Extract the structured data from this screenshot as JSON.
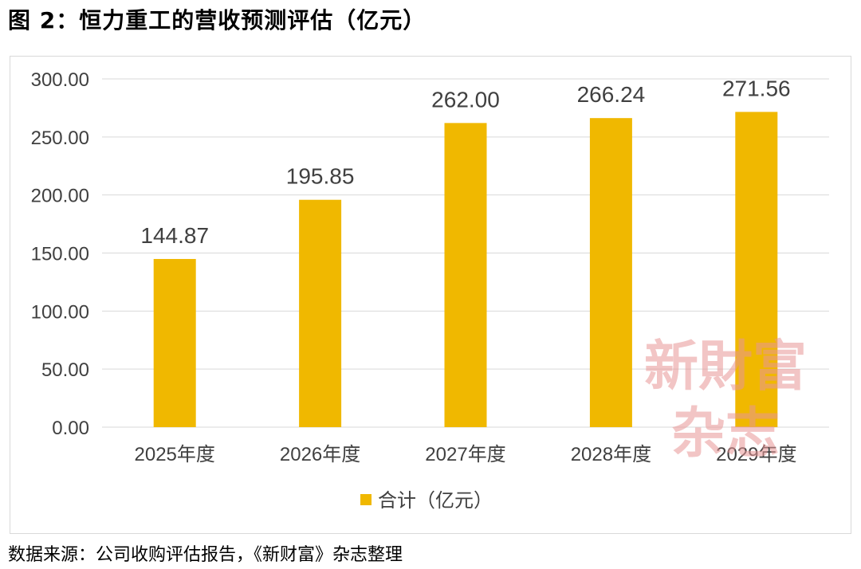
{
  "figure": {
    "title": "图 2：恒力重工的营收预测评估（亿元）",
    "source": "数据来源：公司收购评估报告，《新财富》杂志整理",
    "watermark_line1": "新財富",
    "watermark_line2": "杂志"
  },
  "chart_data": {
    "type": "bar",
    "title": "",
    "xlabel": "",
    "ylabel": "",
    "categories": [
      "2025年度",
      "2026年度",
      "2027年度",
      "2028年度",
      "2029年度"
    ],
    "series": [
      {
        "name": "合计（亿元）",
        "values": [
          144.87,
          195.85,
          262.0,
          266.24,
          271.56
        ],
        "labels": [
          "144.87",
          "195.85",
          "262.00",
          "266.24",
          "271.56"
        ],
        "color": "#F0B800"
      }
    ],
    "ylim": [
      0,
      300
    ],
    "yticks": [
      "0.00",
      "50.00",
      "100.00",
      "150.00",
      "200.00",
      "250.00",
      "300.00"
    ],
    "grid": true,
    "legend": "bottom",
    "gridline_color": "#d9d9d9",
    "text_color": "#404040"
  }
}
